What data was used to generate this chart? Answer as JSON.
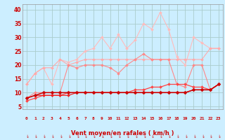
{
  "background_color": "#cceeff",
  "grid_color": "#aacccc",
  "xlabel": "Vent moyen/en rafales ( km/h )",
  "xlabel_color": "#cc0000",
  "xlabel_fontsize": 6.0,
  "tick_color": "#cc0000",
  "ytick_values": [
    5,
    10,
    15,
    20,
    25,
    30,
    35,
    40
  ],
  "ytick_labels": [
    "5",
    "10",
    "15",
    "20",
    "25",
    "30",
    "35",
    "40"
  ],
  "xtick_labels": [
    "0",
    "1",
    "2",
    "3",
    "4",
    "5",
    "6",
    "7",
    "8",
    "9",
    "10",
    "11",
    "12",
    "13",
    "14",
    "15",
    "16",
    "17",
    "18",
    "19",
    "20",
    "21",
    "22",
    "23"
  ],
  "xlim": [
    -0.5,
    23.5
  ],
  "ylim": [
    4,
    42
  ],
  "series": [
    {
      "color": "#ffbbbb",
      "linewidth": 0.8,
      "marker": "D",
      "markersize": 2.0,
      "data": [
        13,
        17,
        19,
        13,
        22,
        21,
        22,
        25,
        26,
        30,
        26,
        31,
        26,
        29,
        35,
        33,
        39,
        33,
        23,
        20,
        30,
        28,
        26,
        26
      ]
    },
    {
      "color": "#ffaaaa",
      "linewidth": 0.8,
      "marker": "D",
      "markersize": 2.0,
      "data": [
        13,
        17,
        19,
        19,
        22,
        20,
        21,
        22,
        22,
        22,
        22,
        22,
        22,
        22,
        22,
        22,
        22,
        22,
        22,
        22,
        22,
        22,
        26,
        26
      ]
    },
    {
      "color": "#ff8888",
      "linewidth": 0.8,
      "marker": "D",
      "markersize": 2.0,
      "data": [
        8,
        10,
        10,
        10,
        10,
        20,
        19,
        20,
        20,
        20,
        19,
        17,
        20,
        22,
        24,
        22,
        22,
        22,
        13,
        12,
        20,
        20,
        11,
        13
      ]
    },
    {
      "color": "#ff4444",
      "linewidth": 0.9,
      "marker": "D",
      "markersize": 2.0,
      "data": [
        7,
        8,
        9,
        9,
        9,
        10,
        10,
        10,
        10,
        10,
        10,
        10,
        10,
        11,
        11,
        12,
        12,
        13,
        13,
        13,
        12,
        12,
        11,
        13
      ]
    },
    {
      "color": "#ee2222",
      "linewidth": 0.9,
      "marker": "D",
      "markersize": 2.0,
      "data": [
        8,
        9,
        9,
        9,
        9,
        9,
        10,
        10,
        10,
        10,
        10,
        10,
        10,
        10,
        10,
        10,
        10,
        10,
        10,
        10,
        11,
        11,
        11,
        13
      ]
    },
    {
      "color": "#cc0000",
      "linewidth": 1.1,
      "marker": "D",
      "markersize": 2.5,
      "data": [
        8,
        9,
        10,
        10,
        10,
        10,
        10,
        10,
        10,
        10,
        10,
        10,
        10,
        10,
        10,
        10,
        10,
        10,
        10,
        10,
        11,
        11,
        11,
        13
      ]
    }
  ]
}
